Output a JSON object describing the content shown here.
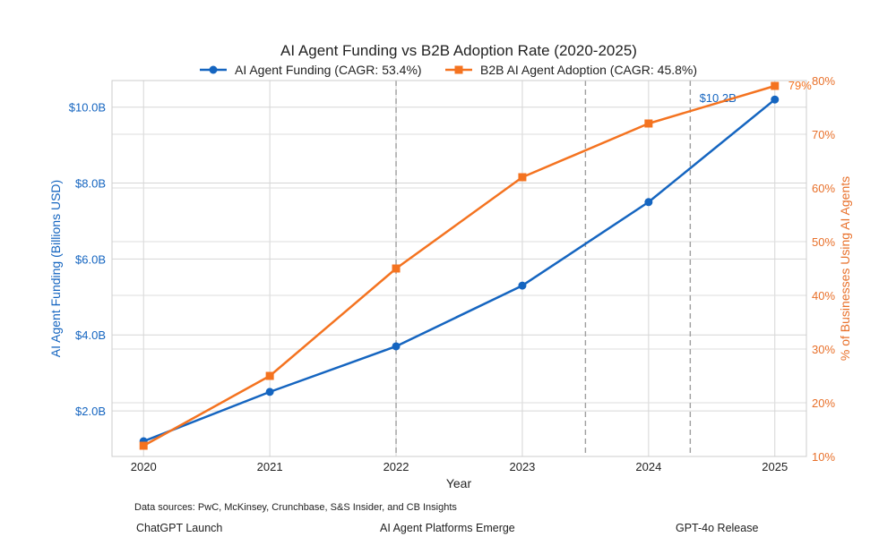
{
  "chart_data": {
    "type": "line",
    "title": "AI Agent Funding vs B2B Adoption Rate (2020-2025)",
    "xlabel": "Year",
    "x": [
      2020,
      2021,
      2022,
      2023,
      2024,
      2025
    ],
    "x_tick_labels": [
      "2020",
      "2021",
      "2022",
      "2023",
      "2024",
      "2025"
    ],
    "y_left": {
      "label": "AI Agent Funding (Billions USD)",
      "ylim": [
        0.8,
        10.7
      ],
      "ticks": [
        2,
        4,
        6,
        8,
        10
      ],
      "tick_labels": [
        "$2.0B",
        "$4.0B",
        "$6.0B",
        "$8.0B",
        "$10.0B"
      ],
      "color": "#1565c0"
    },
    "y_right": {
      "label": "% of Businesses Using AI Agents",
      "ylim": [
        10,
        80
      ],
      "ticks": [
        10,
        20,
        30,
        40,
        50,
        60,
        70,
        80
      ],
      "tick_labels": [
        "10%",
        "20%",
        "30%",
        "40%",
        "50%",
        "60%",
        "70%",
        "80%"
      ],
      "color": "#e8702a"
    },
    "series": [
      {
        "name": "AI Agent Funding (CAGR: 53.4%)",
        "axis": "left",
        "marker": "circle",
        "color": "#1565c0",
        "values": [
          1.2,
          2.5,
          3.7,
          5.3,
          7.5,
          10.2
        ],
        "end_label": "$10.2B"
      },
      {
        "name": "B2B AI Agent Adoption (CAGR: 45.8%)",
        "axis": "right",
        "marker": "square",
        "color": "#f47320",
        "values": [
          12,
          25,
          45,
          62,
          72,
          79
        ],
        "end_label": "79%"
      }
    ],
    "event_lines": [
      2022,
      2023.5,
      2024.33
    ],
    "legend_position": "top-center",
    "grid": true
  },
  "footnote": "Data sources: PwC, McKinsey, Crunchbase, S&S Insider, and CB Insights",
  "events": [
    {
      "label": "ChatGPT Launch"
    },
    {
      "label": "AI Agent Platforms Emerge"
    },
    {
      "label": "GPT-4o Release"
    }
  ]
}
